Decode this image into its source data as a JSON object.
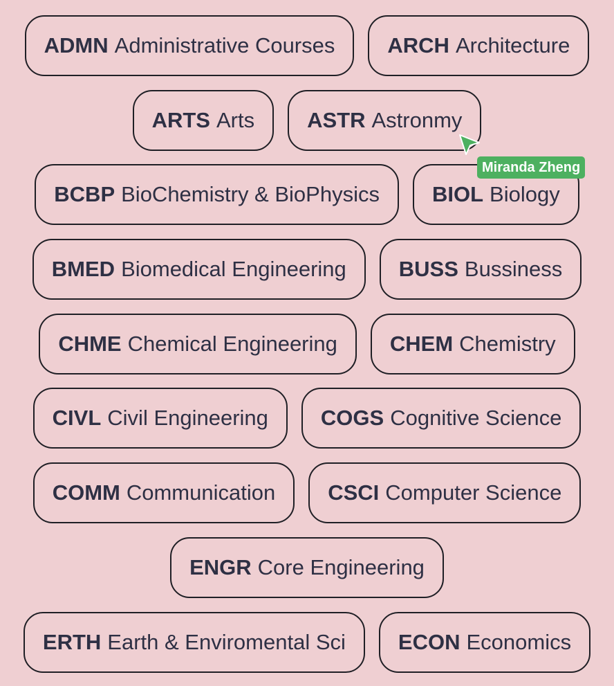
{
  "courses": [
    {
      "code": "ADMN",
      "name": "Administrative Courses"
    },
    {
      "code": "ARCH",
      "name": "Architecture"
    },
    {
      "code": "ARTS",
      "name": "Arts"
    },
    {
      "code": "ASTR",
      "name": "Astronmy"
    },
    {
      "code": "BCBP",
      "name": "BioChemistry & BioPhysics"
    },
    {
      "code": "BIOL",
      "name": "Biology"
    },
    {
      "code": "BMED",
      "name": "Biomedical Engineering"
    },
    {
      "code": "BUSS",
      "name": "Bussiness"
    },
    {
      "code": "CHME",
      "name": "Chemical Engineering"
    },
    {
      "code": "CHEM",
      "name": "Chemistry"
    },
    {
      "code": "CIVL",
      "name": "Civil Engineering"
    },
    {
      "code": "COGS",
      "name": "Cognitive Science"
    },
    {
      "code": "COMM",
      "name": "Communication"
    },
    {
      "code": "CSCI",
      "name": "Computer Science"
    },
    {
      "code": "ENGR",
      "name": "Core Engineering"
    },
    {
      "code": "ERTH",
      "name": "Earth & Enviromental Sci"
    },
    {
      "code": "ECON",
      "name": "Economics"
    }
  ],
  "cursor": {
    "user": "Miranda Zheng",
    "icon": "cursor-arrow-icon",
    "color": "#4db060"
  },
  "colors": {
    "background": "#efcfd2",
    "pill_border": "#1f1f25",
    "text": "#2e3044"
  }
}
